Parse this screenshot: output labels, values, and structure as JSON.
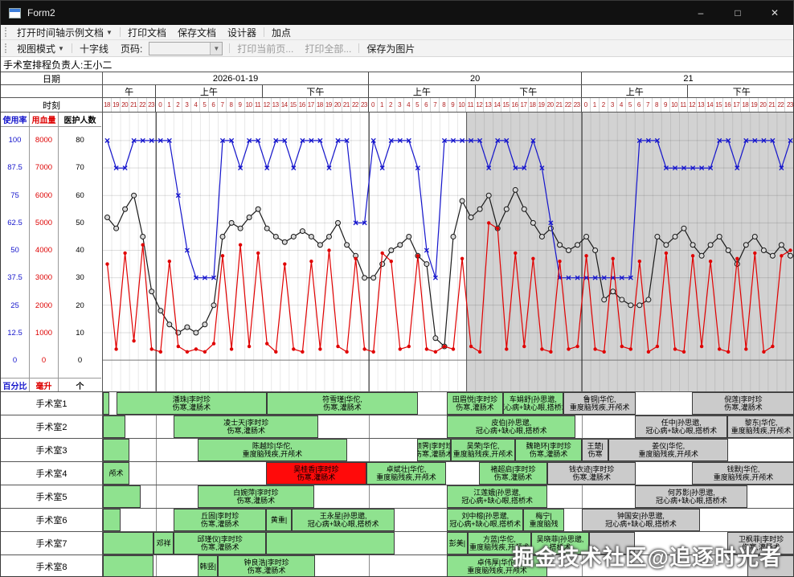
{
  "window": {
    "title": "Form2"
  },
  "icons": {
    "minimize": "–",
    "maximize": "□",
    "close": "✕",
    "dropdown": "▼",
    "combo_arrow": "▼"
  },
  "menubar": {
    "items": [
      {
        "label": "打开时间轴示例文档",
        "has_dropdown": true
      },
      {
        "label": "打印文档"
      },
      {
        "label": "保存文档"
      },
      {
        "label": "设计器"
      },
      {
        "label": "加点"
      }
    ]
  },
  "toolbar": {
    "view_mode": "视图模式",
    "crosshair": "十字线",
    "page_label": "页码:",
    "page_value": "",
    "print_current": "打印当前页...",
    "print_all": "打印全部...",
    "save_image": "保存为图片"
  },
  "header": {
    "manager": "手术室排程负责人:王小二"
  },
  "grid": {
    "date_label": "日期",
    "time_label": "时刻",
    "dates": [
      {
        "label": "2026-01-19",
        "hours": 30
      },
      {
        "label": "20",
        "hours": 24
      },
      {
        "label": "21",
        "hours": 24
      }
    ],
    "periods": [
      {
        "label": "午",
        "hours": 6
      },
      {
        "label": "上午",
        "hours": 12
      },
      {
        "label": "下午",
        "hours": 12
      },
      {
        "label": "上午",
        "hours": 12
      },
      {
        "label": "下午",
        "hours": 12
      },
      {
        "label": "上午",
        "hours": 12
      },
      {
        "label": "下午",
        "hours": 12
      }
    ],
    "hour_labels": [
      "18",
      "19",
      "20",
      "21",
      "22",
      "23",
      "0",
      "1",
      "2",
      "3",
      "4",
      "5",
      "6",
      "7",
      "8",
      "9",
      "10",
      "11",
      "12",
      "13",
      "14",
      "15",
      "16",
      "17",
      "18",
      "19",
      "20",
      "21",
      "22",
      "23",
      "0",
      "1",
      "2",
      "3",
      "4",
      "5",
      "6",
      "7",
      "8",
      "9",
      "10",
      "11",
      "12",
      "13",
      "14",
      "15",
      "16",
      "17",
      "18",
      "19",
      "20",
      "21",
      "22",
      "23",
      "0",
      "1",
      "2",
      "3",
      "4",
      "5",
      "6",
      "7",
      "8",
      "9",
      "10",
      "11",
      "12",
      "13",
      "14",
      "15",
      "16",
      "17",
      "18",
      "19",
      "20",
      "21",
      "22",
      "23"
    ]
  },
  "axes": {
    "usage": {
      "title": "使用率",
      "unit": "百分比",
      "color": "#1515cc",
      "ticks": [
        "100",
        "87.5",
        "75",
        "62.5",
        "50",
        "37.5",
        "25",
        "12.5",
        "0"
      ]
    },
    "blood": {
      "title": "用血量",
      "unit": "毫升",
      "color": "#dd0000",
      "ticks": [
        "8000",
        "7000",
        "6000",
        "5000",
        "4000",
        "3000",
        "2000",
        "1000",
        "0"
      ]
    },
    "staff": {
      "title": "医护人数",
      "unit": "个",
      "color": "#000000",
      "ticks": [
        "80",
        "70",
        "60",
        "50",
        "40",
        "30",
        "20",
        "10",
        "0"
      ]
    }
  },
  "chart_data": {
    "type": "line",
    "total_hours": 78,
    "gray_from_hour": 41,
    "day_boundaries": [
      6,
      30,
      54
    ],
    "y_axes": [
      {
        "name": "使用率",
        "range": [
          0,
          100
        ],
        "unit": "百分比"
      },
      {
        "name": "用血量",
        "range": [
          0,
          8000
        ],
        "unit": "毫升"
      },
      {
        "name": "医护人数",
        "range": [
          0,
          80
        ],
        "unit": "个"
      }
    ],
    "grid": true,
    "series": [
      {
        "name": "医护人数",
        "color": "#1a1a1a",
        "marker": "circle",
        "axis_max": 80,
        "values": [
          52,
          48,
          55,
          60,
          45,
          25,
          18,
          13,
          10,
          12,
          10,
          13,
          20,
          45,
          50,
          48,
          52,
          55,
          48,
          45,
          43,
          45,
          47,
          45,
          42,
          45,
          50,
          42,
          38,
          30,
          30,
          35,
          40,
          42,
          45,
          38,
          35,
          8,
          5,
          45,
          58,
          52,
          55,
          60,
          48,
          55,
          62,
          55,
          50,
          45,
          48,
          42,
          40,
          42,
          45,
          40,
          22,
          25,
          22,
          20,
          20,
          22,
          45,
          42,
          45,
          48,
          42,
          38,
          42,
          45,
          40,
          35,
          42,
          45,
          40,
          38,
          42,
          38
        ]
      },
      {
        "name": "使用率",
        "color": "#1515cc",
        "marker": "x",
        "axis_max": 100,
        "values": [
          100,
          87.5,
          87.5,
          100,
          100,
          100,
          100,
          100,
          75,
          50,
          37.5,
          37.5,
          37.5,
          100,
          100,
          87.5,
          100,
          100,
          87.5,
          100,
          100,
          87.5,
          100,
          100,
          100,
          87.5,
          100,
          100,
          62.5,
          62.5,
          100,
          87.5,
          100,
          100,
          100,
          87.5,
          50,
          37.5,
          100,
          100,
          100,
          100,
          100,
          87.5,
          100,
          100,
          87.5,
          87.5,
          100,
          87.5,
          62.5,
          37.5,
          37.5,
          37.5,
          37.5,
          37.5,
          37.5,
          37.5,
          37.5,
          37.5,
          100,
          100,
          100,
          87.5,
          87.5,
          87.5,
          87.5,
          87.5,
          87.5,
          100,
          100,
          87.5,
          100,
          100,
          100,
          100,
          87.5,
          100
        ]
      },
      {
        "name": "用血量",
        "color": "#e00000",
        "marker": "dot",
        "axis_max": 8000,
        "values": [
          3500,
          400,
          3900,
          700,
          4200,
          400,
          300,
          3600,
          500,
          300,
          400,
          300,
          600,
          3800,
          400,
          4200,
          500,
          3900,
          600,
          300,
          3500,
          400,
          300,
          3600,
          400,
          4000,
          500,
          300,
          3700,
          400,
          300,
          3900,
          3600,
          400,
          500,
          3800,
          400,
          300,
          500,
          400,
          3700,
          500,
          300,
          5000,
          4800,
          400,
          3900,
          500,
          3700,
          400,
          300,
          3600,
          400,
          500,
          3800,
          400,
          300,
          3700,
          500,
          400,
          3600,
          300,
          500,
          3900,
          400,
          300,
          3800,
          500,
          3600,
          400,
          300,
          3700,
          400,
          3900,
          300,
          500,
          3800,
          4000
        ]
      }
    ]
  },
  "rooms": [
    {
      "label": "手术室1",
      "blocks": [
        {
          "start": 0,
          "len": 0.7,
          "type": "green",
          "line1": "",
          "line2": ""
        },
        {
          "start": 1.5,
          "len": 17,
          "type": "green",
          "line1": "潘珠|李时珍",
          "line2": "伤寒,灌肠术"
        },
        {
          "start": 18.5,
          "len": 17,
          "type": "green",
          "line1": "符雪瑾|华佗,",
          "line2": "伤寒,灌肠术"
        },
        {
          "start": 38.8,
          "len": 6.3,
          "type": "green",
          "line1": "田眉悦|李时珍",
          "line2": "伤寒,灌肠术"
        },
        {
          "start": 45.1,
          "len": 6.8,
          "type": "green",
          "line1": "车娟舒|孙思邈,",
          "line2": "冠心病+缺心眼,搭桥术"
        },
        {
          "start": 51.9,
          "len": 8.2,
          "type": "gray",
          "line1": "鲁铜|华佗,",
          "line2": "重度脑残疾,开颅术"
        },
        {
          "start": 66.4,
          "len": 11.6,
          "type": "gray",
          "line1": "倪莲|李时珍",
          "line2": "伤寒,灌肠术"
        }
      ]
    },
    {
      "label": "手术室2",
      "blocks": [
        {
          "start": 0,
          "len": 2.5,
          "type": "green",
          "line1": "",
          "line2": ""
        },
        {
          "start": 8,
          "len": 16.3,
          "type": "green",
          "line1": "凌士天|李时珍",
          "line2": "伤寒,灌肠术"
        },
        {
          "start": 38.8,
          "len": 14.5,
          "type": "green",
          "line1": "皮伯|孙思邈,",
          "line2": "冠心病+缺心眼,搭桥术"
        },
        {
          "start": 60,
          "len": 10.4,
          "type": "gray",
          "line1": "任中|孙思邈,",
          "line2": "冠心病+缺心眼,搭桥术"
        },
        {
          "start": 70.4,
          "len": 7.6,
          "type": "gray",
          "line1": "黎东|华佗,",
          "line2": "重度脑残疾,开颅术"
        }
      ]
    },
    {
      "label": "手术室3",
      "blocks": [
        {
          "start": 0,
          "len": 3,
          "type": "green",
          "line1": "",
          "line2": ""
        },
        {
          "start": 10.7,
          "len": 16.8,
          "type": "green",
          "line1": "陈越珍|华佗,",
          "line2": "重度脑残疾,开颅术"
        },
        {
          "start": 35.4,
          "len": 3.8,
          "type": "green",
          "line1": "颜霁|李时珍",
          "line2": "伤寒,灌肠术"
        },
        {
          "start": 39.2,
          "len": 7.3,
          "type": "green",
          "line1": "吴荣|华佗,",
          "line2": "重度脑残疾,开颅术"
        },
        {
          "start": 46.5,
          "len": 7.5,
          "type": "green",
          "line1": "魏艳环|李时珍",
          "line2": "伤寒,灌肠术"
        },
        {
          "start": 54,
          "len": 3,
          "type": "gray",
          "line1": "王楚|",
          "line2": "伤寒"
        },
        {
          "start": 57,
          "len": 13.5,
          "type": "gray",
          "line1": "姜仪|华佗,",
          "line2": "重度脑残疾,开颅术"
        }
      ]
    },
    {
      "label": "手术室4",
      "blocks": [
        {
          "start": 0,
          "len": 3,
          "type": "green",
          "line1": "颅术",
          "line2": ""
        },
        {
          "start": 18.4,
          "len": 11.3,
          "type": "red",
          "line1": "吴桂香|李时珍",
          "line2": "伤寒,灌肠术"
        },
        {
          "start": 29.7,
          "len": 9,
          "type": "green",
          "line1": "卓斌壮|华佗,",
          "line2": "重度脑残疾,开颅术"
        },
        {
          "start": 42.4,
          "len": 7.7,
          "type": "green",
          "line1": "褚超启|李时珍",
          "line2": "伤寒,灌肠术"
        },
        {
          "start": 50.1,
          "len": 10,
          "type": "gray",
          "line1": "钱衣迹|李时珍",
          "line2": "伤寒,灌肠术"
        },
        {
          "start": 66.4,
          "len": 11.6,
          "type": "gray",
          "line1": "钱默|华佗,",
          "line2": "重度脑残疾,开颅术"
        }
      ]
    },
    {
      "label": "手术室5",
      "blocks": [
        {
          "start": 0,
          "len": 4.3,
          "type": "green",
          "line1": "",
          "line2": ""
        },
        {
          "start": 10.7,
          "len": 13.1,
          "type": "green",
          "line1": "白婉萍|李时珍",
          "line2": "伤寒,灌肠术"
        },
        {
          "start": 38.8,
          "len": 11.3,
          "type": "green",
          "line1": "江莲娥|孙思邈,",
          "line2": "冠心病+缺心眼,搭桥术"
        },
        {
          "start": 60,
          "len": 12.7,
          "type": "gray",
          "line1": "何苏影|孙思邈,",
          "line2": "冠心病+缺心眼,搭桥术"
        }
      ]
    },
    {
      "label": "手术室6",
      "blocks": [
        {
          "start": 0,
          "len": 2,
          "type": "green",
          "line1": "",
          "line2": ""
        },
        {
          "start": 8,
          "len": 10.4,
          "type": "green",
          "line1": "丘固|李时珍",
          "line2": "伤寒,灌肠术"
        },
        {
          "start": 18.4,
          "len": 2.9,
          "type": "green",
          "line1": "黄重|",
          "line2": ""
        },
        {
          "start": 21.3,
          "len": 11.6,
          "type": "green",
          "line1": "王永星|孙思邈,",
          "line2": "冠心病+缺心眼,搭桥术"
        },
        {
          "start": 38.8,
          "len": 8.6,
          "type": "green",
          "line1": "刘中榕|孙思邈,",
          "line2": "冠心病+缺心眼,搭桥术"
        },
        {
          "start": 47.4,
          "len": 4.6,
          "type": "green",
          "line1": "梅宁|",
          "line2": "重度脑残"
        },
        {
          "start": 54,
          "len": 13.3,
          "type": "gray",
          "line1": "钟国安|孙思邈,",
          "line2": "冠心病+缺心眼,搭桥术"
        }
      ]
    },
    {
      "label": "手术室7",
      "blocks": [
        {
          "start": 0,
          "len": 5.7,
          "type": "green",
          "line1": "",
          "line2": ""
        },
        {
          "start": 5.7,
          "len": 2.3,
          "type": "green",
          "line1": "邓祥",
          "line2": ""
        },
        {
          "start": 8,
          "len": 10.4,
          "type": "green",
          "line1": "邱瑾仪|李时珍",
          "line2": "伤寒,灌肠术"
        },
        {
          "start": 18.4,
          "len": 14.5,
          "type": "green",
          "line1": "",
          "line2": ""
        },
        {
          "start": 38.8,
          "len": 2.3,
          "type": "green",
          "line1": "彭美|",
          "line2": ""
        },
        {
          "start": 41.1,
          "len": 7.2,
          "type": "green",
          "line1": "方蓝|华佗,",
          "line2": "重度脑残疾,开颅术"
        },
        {
          "start": 48.3,
          "len": 6.5,
          "type": "green",
          "line1": "吴晓菲|孙思邈,",
          "line2": "搭桥术"
        },
        {
          "start": 54.8,
          "len": 5.2,
          "type": "gray",
          "line1": "",
          "line2": ""
        },
        {
          "start": 70.4,
          "len": 7.6,
          "type": "gray",
          "line1": "卫枫菲|李时珍",
          "line2": "伤寒,灌肠术"
        }
      ]
    },
    {
      "label": "手术室8",
      "blocks": [
        {
          "start": 0,
          "len": 5.7,
          "type": "green",
          "line1": "",
          "line2": ""
        },
        {
          "start": 10.7,
          "len": 2.3,
          "type": "green",
          "line1": "韩竖|",
          "line2": ""
        },
        {
          "start": 13,
          "len": 10.9,
          "type": "green",
          "line1": "钟良浩|李时珍",
          "line2": "伤寒,灌肠术"
        },
        {
          "start": 38.8,
          "len": 11.3,
          "type": "green",
          "line1": "卓伟厚|华佗,",
          "line2": "重度脑残疾,开颅术"
        },
        {
          "start": 72.7,
          "len": 5.3,
          "type": "gray",
          "line1": "",
          "line2": ""
        }
      ]
    }
  ],
  "watermark": "掘金技术社区@追逐时光者"
}
